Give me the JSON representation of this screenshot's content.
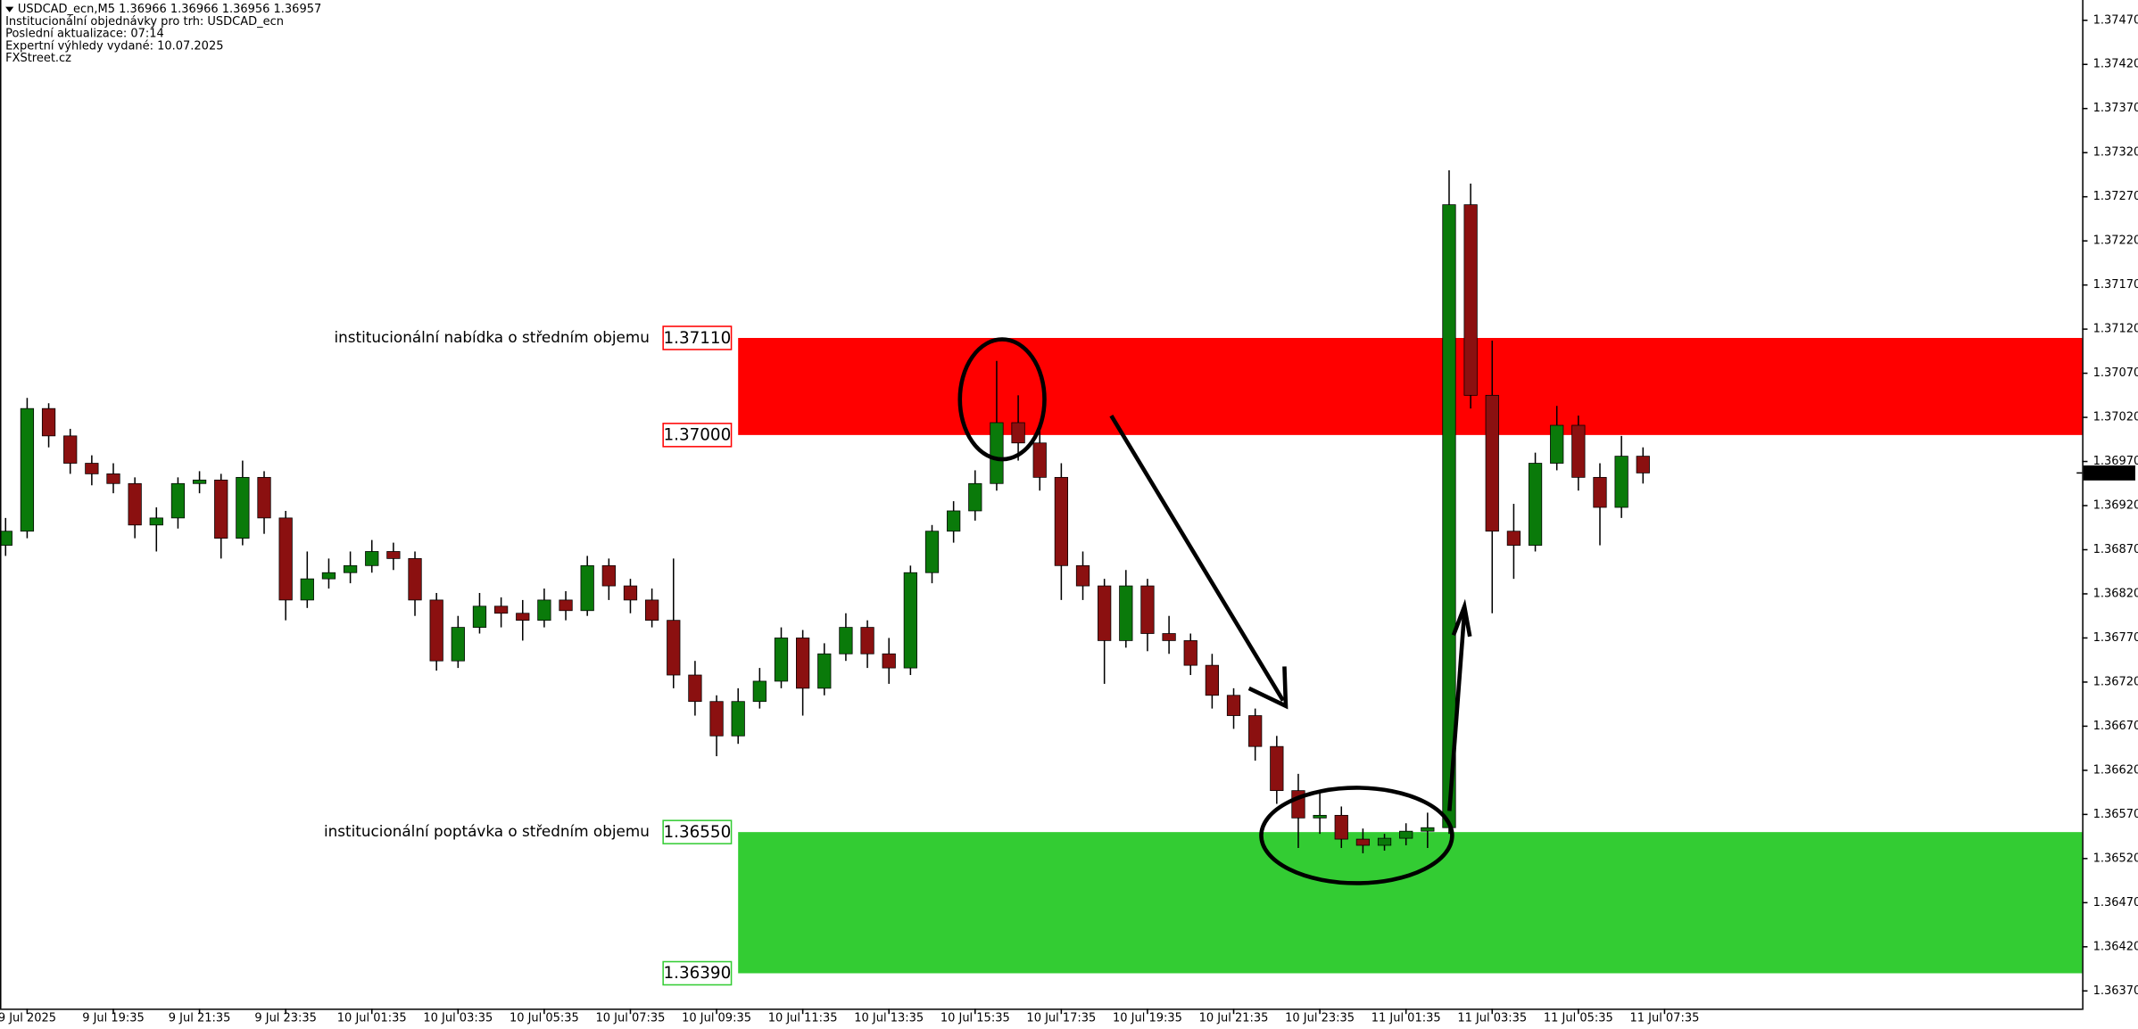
{
  "chart_data": {
    "type": "candlestick",
    "header": [
      "USDCAD_ecn,M5  1.36966 1.36966 1.36956 1.36957",
      "Institucionální objednávky pro trh: USDCAD_ecn",
      "Poslední aktualizace: 07:14",
      "Expertní výhledy vydané: 10.07.2025",
      "FXStreet.cz"
    ],
    "up_color": "#0a7a0a",
    "down_color": "#8b1010",
    "xlim": [
      -0.63,
      47.69
    ],
    "xticks": [
      {
        "value": 0,
        "label": "9 Jul 2025"
      },
      {
        "value": 2,
        "label": "9 Jul 19:35"
      },
      {
        "value": 4,
        "label": "9 Jul 21:35"
      },
      {
        "value": 6,
        "label": "9 Jul 23:35"
      },
      {
        "value": 8,
        "label": "10 Jul 01:35"
      },
      {
        "value": 10,
        "label": "10 Jul 03:35"
      },
      {
        "value": 12,
        "label": "10 Jul 05:35"
      },
      {
        "value": 14,
        "label": "10 Jul 07:35"
      },
      {
        "value": 16,
        "label": "10 Jul 09:35"
      },
      {
        "value": 18,
        "label": "10 Jul 11:35"
      },
      {
        "value": 20,
        "label": "10 Jul 13:35"
      },
      {
        "value": 22,
        "label": "10 Jul 15:35"
      },
      {
        "value": 24,
        "label": "10 Jul 17:35"
      },
      {
        "value": 26,
        "label": "10 Jul 19:35"
      },
      {
        "value": 28,
        "label": "10 Jul 21:35"
      },
      {
        "value": 30,
        "label": "10 Jul 23:35"
      },
      {
        "value": 32,
        "label": "11 Jul 01:35"
      },
      {
        "value": 34,
        "label": "11 Jul 03:35"
      },
      {
        "value": 36,
        "label": "11 Jul 05:35"
      },
      {
        "value": 38,
        "label": "11 Jul 07:35"
      }
    ],
    "ylim": [
      1.3635,
      1.37493
    ],
    "yticks": [
      {
        "value": 1.3747,
        "label": "1.37470"
      },
      {
        "value": 1.3742,
        "label": "1.37420"
      },
      {
        "value": 1.3737,
        "label": "1.37370"
      },
      {
        "value": 1.3732,
        "label": "1.37320"
      },
      {
        "value": 1.3727,
        "label": "1.37270"
      },
      {
        "value": 1.3722,
        "label": "1.37220"
      },
      {
        "value": 1.3717,
        "label": "1.37170"
      },
      {
        "value": 1.3712,
        "label": "1.37120"
      },
      {
        "value": 1.3707,
        "label": "1.37070"
      },
      {
        "value": 1.3702,
        "label": "1.37020"
      },
      {
        "value": 1.3697,
        "label": "1.36970"
      },
      {
        "value": 1.3692,
        "label": "1.36920"
      },
      {
        "value": 1.3687,
        "label": "1.36870"
      },
      {
        "value": 1.3682,
        "label": "1.36820"
      },
      {
        "value": 1.3677,
        "label": "1.36770"
      },
      {
        "value": 1.3672,
        "label": "1.36720"
      },
      {
        "value": 1.3667,
        "label": "1.36670"
      },
      {
        "value": 1.3662,
        "label": "1.36620"
      },
      {
        "value": 1.3657,
        "label": "1.36570"
      },
      {
        "value": 1.3652,
        "label": "1.36520"
      },
      {
        "value": 1.3647,
        "label": "1.36470"
      },
      {
        "value": 1.3642,
        "label": "1.36420"
      },
      {
        "value": 1.3637,
        "label": "1.36370"
      }
    ],
    "last_price": 1.36957,
    "x": [
      -0.5,
      0,
      0.5,
      1,
      1.5,
      2,
      2.5,
      3,
      3.5,
      4,
      4.5,
      5,
      5.5,
      6,
      6.5,
      7,
      7.5,
      8,
      8.5,
      9,
      9.5,
      10,
      10.5,
      11,
      11.5,
      12,
      12.5,
      13,
      13.5,
      14,
      14.5,
      15,
      15.5,
      16,
      16.5,
      17,
      17.5,
      18,
      18.5,
      19,
      19.5,
      20,
      20.5,
      21,
      21.5,
      22,
      22.5,
      23,
      23.5,
      24,
      24.5,
      25,
      25.5,
      26,
      26.5,
      27,
      27.5,
      28,
      28.5,
      29,
      29.5,
      30,
      30.5,
      31,
      31.5,
      32,
      32.5,
      33,
      33.5,
      34,
      34.5,
      35,
      35.5,
      36,
      36.5,
      37,
      37.5
    ],
    "open": [
      1.36875,
      1.36891,
      1.3703,
      1.36999,
      1.36968,
      1.36956,
      1.36945,
      1.36898,
      1.36906,
      1.36945,
      1.36949,
      1.36883,
      1.36952,
      1.36906,
      1.36813,
      1.36837,
      1.36844,
      1.36852,
      1.36868,
      1.3686,
      1.36813,
      1.36744,
      1.36782,
      1.36806,
      1.36798,
      1.3679,
      1.36813,
      1.36801,
      1.36852,
      1.36829,
      1.36813,
      1.3679,
      1.36728,
      1.36698,
      1.36659,
      1.36698,
      1.36721,
      1.3677,
      1.36713,
      1.36752,
      1.36782,
      1.36752,
      1.36736,
      1.36844,
      1.36891,
      1.36914,
      1.36945,
      1.37014,
      1.36991,
      1.36952,
      1.36852,
      1.36829,
      1.36767,
      1.36829,
      1.36775,
      1.36767,
      1.36739,
      1.36705,
      1.36682,
      1.36647,
      1.36597,
      1.36566,
      1.36569,
      1.36542,
      1.36535,
      1.36543,
      1.36551,
      1.36555,
      1.37261,
      1.37045,
      1.36891,
      1.36875,
      1.36968,
      1.37011,
      1.36952,
      1.36918,
      1.36976
    ],
    "high": [
      1.36906,
      1.37042,
      1.37036,
      1.37007,
      1.36977,
      1.36968,
      1.36952,
      1.36918,
      1.36952,
      1.36959,
      1.36956,
      1.36971,
      1.36959,
      1.36914,
      1.36868,
      1.3686,
      1.36868,
      1.36881,
      1.36878,
      1.36868,
      1.36821,
      1.36795,
      1.36821,
      1.36816,
      1.36813,
      1.36826,
      1.36823,
      1.36863,
      1.3686,
      1.36837,
      1.36826,
      1.3686,
      1.36744,
      1.36705,
      1.36713,
      1.36736,
      1.36782,
      1.36779,
      1.36764,
      1.36798,
      1.3679,
      1.3677,
      1.36852,
      1.36898,
      1.36925,
      1.3696,
      1.37084,
      1.37045,
      1.37007,
      1.36968,
      1.36868,
      1.36837,
      1.36847,
      1.36837,
      1.36795,
      1.36775,
      1.36752,
      1.36713,
      1.3669,
      1.36659,
      1.36616,
      1.36597,
      1.36579,
      1.36554,
      1.36548,
      1.3656,
      1.36572,
      1.373,
      1.37285,
      1.37107,
      1.36922,
      1.3698,
      1.37033,
      1.37022,
      1.36968,
      1.36999,
      1.36986
    ],
    "low": [
      1.36863,
      1.36883,
      1.36986,
      1.36956,
      1.36943,
      1.36934,
      1.36883,
      1.36868,
      1.36894,
      1.36934,
      1.3686,
      1.36875,
      1.36888,
      1.3679,
      1.36804,
      1.36826,
      1.36832,
      1.36844,
      1.36847,
      1.36795,
      1.36733,
      1.36736,
      1.36775,
      1.36782,
      1.36767,
      1.36782,
      1.3679,
      1.36795,
      1.36813,
      1.36798,
      1.36782,
      1.36713,
      1.36682,
      1.36636,
      1.3665,
      1.3669,
      1.36713,
      1.36682,
      1.36705,
      1.36744,
      1.36736,
      1.36718,
      1.36728,
      1.36832,
      1.36878,
      1.36903,
      1.36937,
      1.36971,
      1.36937,
      1.36813,
      1.36813,
      1.36718,
      1.36759,
      1.36755,
      1.36752,
      1.36728,
      1.3669,
      1.36667,
      1.36631,
      1.36582,
      1.36532,
      1.36548,
      1.36532,
      1.36526,
      1.36529,
      1.36535,
      1.36532,
      1.36548,
      1.3703,
      1.36798,
      1.36837,
      1.36868,
      1.3696,
      1.36937,
      1.36875,
      1.36906,
      1.36945
    ],
    "close": [
      1.36891,
      1.3703,
      1.36999,
      1.36968,
      1.36956,
      1.36945,
      1.36898,
      1.36906,
      1.36945,
      1.36949,
      1.36883,
      1.36952,
      1.36906,
      1.36813,
      1.36837,
      1.36844,
      1.36852,
      1.36868,
      1.3686,
      1.36813,
      1.36744,
      1.36782,
      1.36806,
      1.36798,
      1.3679,
      1.36813,
      1.36801,
      1.36852,
      1.36829,
      1.36813,
      1.3679,
      1.36728,
      1.36698,
      1.36659,
      1.36698,
      1.36721,
      1.3677,
      1.36713,
      1.36752,
      1.36782,
      1.36752,
      1.36736,
      1.36844,
      1.36891,
      1.36914,
      1.36945,
      1.37014,
      1.36991,
      1.36952,
      1.36852,
      1.36829,
      1.36767,
      1.36829,
      1.36775,
      1.36767,
      1.36739,
      1.36705,
      1.36682,
      1.36647,
      1.36597,
      1.36566,
      1.36569,
      1.36542,
      1.36535,
      1.36543,
      1.36551,
      1.36555,
      1.37261,
      1.37045,
      1.36891,
      1.36875,
      1.36968,
      1.37011,
      1.36952,
      1.36918,
      1.36976,
      1.36957
    ],
    "zones": [
      {
        "label": "institucionální nabídka o středním objemu",
        "color": "#ff0000",
        "x_start": 16.5,
        "top": {
          "value": 1.3711,
          "label": "1.37110"
        },
        "bottom": {
          "value": 1.37,
          "label": "1.37000"
        }
      },
      {
        "label": "institucionální poptávka o středním objemu",
        "color": "#33cc33",
        "x_start": 16.5,
        "top": {
          "value": 1.3655,
          "label": "1.36550"
        },
        "bottom": {
          "value": 1.3639,
          "label": "1.36390"
        }
      }
    ]
  }
}
